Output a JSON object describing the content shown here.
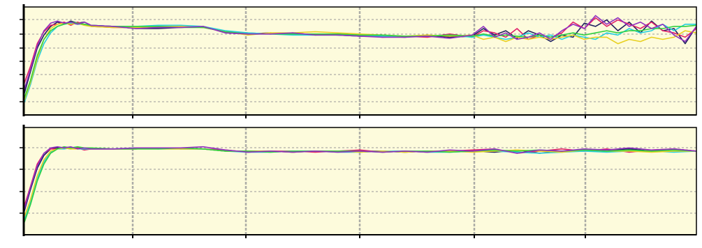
{
  "colors": {
    "background": "#fdfbdc",
    "grid": "#9a9a9a",
    "axis": "#000000",
    "series": [
      "#1f1f60",
      "#e0206a",
      "#22d0e0",
      "#e8d020",
      "#30d040",
      "#9030c0"
    ]
  },
  "chart_data": [
    {
      "type": "line",
      "title": "",
      "xlabel": "",
      "ylabel": "",
      "xlim": [
        0,
        6000
      ],
      "ylim": [
        0,
        1
      ],
      "grid": true,
      "legend": "none",
      "series": [
        {
          "x": [
            0,
            60,
            120,
            180,
            240,
            300,
            360,
            420,
            480,
            540,
            600,
            800,
            1000,
            1200,
            1400,
            1600,
            1800,
            2000,
            2200,
            2400,
            2600,
            2800,
            3000,
            3200,
            3400,
            3600,
            3800,
            4000,
            4100,
            4200,
            4300,
            4400,
            4500,
            4600,
            4700,
            4800,
            4900,
            5000,
            5100,
            5200,
            5300,
            5400,
            5500,
            5600,
            5700,
            5800,
            5900,
            6000
          ],
          "y": [
            0.18,
            0.4,
            0.62,
            0.74,
            0.82,
            0.86,
            0.84,
            0.87,
            0.85,
            0.86,
            0.83,
            0.82,
            0.8,
            0.8,
            0.81,
            0.82,
            0.76,
            0.75,
            0.76,
            0.75,
            0.75,
            0.74,
            0.73,
            0.73,
            0.72,
            0.74,
            0.72,
            0.73,
            0.8,
            0.74,
            0.78,
            0.71,
            0.78,
            0.74,
            0.68,
            0.74,
            0.72,
            0.85,
            0.82,
            0.88,
            0.78,
            0.86,
            0.76,
            0.87,
            0.78,
            0.8,
            0.66,
            0.82
          ]
        },
        {
          "x": [
            0,
            60,
            120,
            180,
            240,
            300,
            360,
            420,
            480,
            540,
            600,
            800,
            1000,
            1200,
            1400,
            1600,
            1800,
            2000,
            2200,
            2400,
            2600,
            2800,
            3000,
            3200,
            3400,
            3600,
            3800,
            4000,
            4100,
            4200,
            4300,
            4400,
            4500,
            4600,
            4700,
            4800,
            4900,
            5000,
            5100,
            5200,
            5300,
            5400,
            5500,
            5600,
            5700,
            5800,
            5900,
            6000
          ],
          "y": [
            0.28,
            0.45,
            0.66,
            0.77,
            0.83,
            0.84,
            0.86,
            0.83,
            0.86,
            0.84,
            0.82,
            0.81,
            0.81,
            0.81,
            0.82,
            0.81,
            0.77,
            0.76,
            0.75,
            0.76,
            0.74,
            0.75,
            0.74,
            0.72,
            0.73,
            0.72,
            0.75,
            0.72,
            0.78,
            0.76,
            0.72,
            0.8,
            0.7,
            0.74,
            0.72,
            0.76,
            0.86,
            0.8,
            0.9,
            0.82,
            0.88,
            0.84,
            0.8,
            0.86,
            0.78,
            0.76,
            0.72,
            0.8
          ]
        },
        {
          "x": [
            0,
            60,
            120,
            180,
            240,
            300,
            360,
            420,
            480,
            540,
            600,
            800,
            1000,
            1200,
            1400,
            1600,
            1800,
            2000,
            2200,
            2400,
            2600,
            2800,
            3000,
            3200,
            3400,
            3600,
            3800,
            4000,
            4100,
            4200,
            4300,
            4400,
            4500,
            4600,
            4700,
            4800,
            4900,
            5000,
            5100,
            5200,
            5300,
            5400,
            5500,
            5600,
            5700,
            5800,
            5900,
            6000
          ],
          "y": [
            0.1,
            0.28,
            0.5,
            0.66,
            0.76,
            0.82,
            0.84,
            0.85,
            0.84,
            0.84,
            0.83,
            0.82,
            0.82,
            0.83,
            0.83,
            0.82,
            0.78,
            0.76,
            0.75,
            0.74,
            0.74,
            0.74,
            0.73,
            0.73,
            0.73,
            0.73,
            0.74,
            0.72,
            0.74,
            0.72,
            0.7,
            0.72,
            0.76,
            0.72,
            0.74,
            0.7,
            0.74,
            0.72,
            0.7,
            0.76,
            0.74,
            0.8,
            0.76,
            0.78,
            0.84,
            0.78,
            0.84,
            0.84
          ]
        },
        {
          "x": [
            0,
            60,
            120,
            180,
            240,
            300,
            360,
            420,
            480,
            540,
            600,
            800,
            1000,
            1200,
            1400,
            1600,
            1800,
            2000,
            2200,
            2400,
            2600,
            2800,
            3000,
            3200,
            3400,
            3600,
            3800,
            4000,
            4100,
            4200,
            4300,
            4400,
            4500,
            4600,
            4700,
            4800,
            4900,
            5000,
            5100,
            5200,
            5300,
            5400,
            5500,
            5600,
            5700,
            5800,
            5900,
            6000
          ],
          "y": [
            0.12,
            0.3,
            0.52,
            0.7,
            0.8,
            0.84,
            0.85,
            0.84,
            0.85,
            0.83,
            0.82,
            0.81,
            0.81,
            0.82,
            0.82,
            0.81,
            0.77,
            0.74,
            0.76,
            0.76,
            0.77,
            0.76,
            0.75,
            0.74,
            0.73,
            0.74,
            0.73,
            0.74,
            0.7,
            0.72,
            0.68,
            0.72,
            0.7,
            0.72,
            0.7,
            0.72,
            0.74,
            0.7,
            0.72,
            0.72,
            0.66,
            0.7,
            0.68,
            0.72,
            0.7,
            0.72,
            0.78,
            0.76
          ]
        },
        {
          "x": [
            0,
            60,
            120,
            180,
            240,
            300,
            360,
            420,
            480,
            540,
            600,
            800,
            1000,
            1200,
            1400,
            1600,
            1800,
            2000,
            2200,
            2400,
            2600,
            2800,
            3000,
            3200,
            3400,
            3600,
            3800,
            4000,
            4100,
            4200,
            4300,
            4400,
            4500,
            4600,
            4700,
            4800,
            4900,
            5000,
            5100,
            5200,
            5300,
            5400,
            5500,
            5600,
            5700,
            5800,
            5900,
            6000
          ],
          "y": [
            0.14,
            0.32,
            0.55,
            0.7,
            0.78,
            0.82,
            0.84,
            0.86,
            0.85,
            0.84,
            0.83,
            0.82,
            0.82,
            0.82,
            0.81,
            0.81,
            0.77,
            0.75,
            0.75,
            0.75,
            0.75,
            0.75,
            0.74,
            0.74,
            0.73,
            0.73,
            0.74,
            0.73,
            0.75,
            0.73,
            0.74,
            0.73,
            0.72,
            0.74,
            0.72,
            0.74,
            0.76,
            0.74,
            0.76,
            0.78,
            0.76,
            0.78,
            0.78,
            0.8,
            0.8,
            0.82,
            0.82,
            0.83
          ]
        },
        {
          "x": [
            0,
            60,
            120,
            180,
            240,
            300,
            360,
            420,
            480,
            540,
            600,
            800,
            1000,
            1200,
            1400,
            1600,
            1800,
            2000,
            2200,
            2400,
            2600,
            2800,
            3000,
            3200,
            3400,
            3600,
            3800,
            4000,
            4100,
            4200,
            4300,
            4400,
            4500,
            4600,
            4700,
            4800,
            4900,
            5000,
            5100,
            5200,
            5300,
            5400,
            5500,
            5600,
            5700,
            5800,
            5900,
            6000
          ],
          "y": [
            0.22,
            0.42,
            0.64,
            0.78,
            0.85,
            0.87,
            0.85,
            0.86,
            0.84,
            0.86,
            0.83,
            0.82,
            0.8,
            0.81,
            0.81,
            0.82,
            0.76,
            0.75,
            0.75,
            0.76,
            0.74,
            0.74,
            0.73,
            0.72,
            0.72,
            0.73,
            0.71,
            0.74,
            0.82,
            0.72,
            0.76,
            0.7,
            0.72,
            0.76,
            0.7,
            0.78,
            0.84,
            0.8,
            0.92,
            0.84,
            0.9,
            0.82,
            0.86,
            0.8,
            0.84,
            0.74,
            0.68,
            0.82
          ]
        }
      ]
    },
    {
      "type": "line",
      "title": "",
      "xlabel": "",
      "ylabel": "",
      "xlim": [
        0,
        6000
      ],
      "ylim": [
        0,
        1
      ],
      "grid": true,
      "legend": "none",
      "series": [
        {
          "x": [
            0,
            60,
            120,
            180,
            240,
            300,
            360,
            420,
            480,
            540,
            600,
            800,
            1000,
            1200,
            1400,
            1600,
            1800,
            2000,
            2200,
            2400,
            2600,
            2800,
            3000,
            3200,
            3400,
            3600,
            3800,
            4000,
            4200,
            4400,
            4600,
            4800,
            5000,
            5200,
            5400,
            5600,
            5800,
            6000
          ],
          "y": [
            0.2,
            0.42,
            0.62,
            0.74,
            0.8,
            0.81,
            0.81,
            0.8,
            0.81,
            0.8,
            0.8,
            0.8,
            0.8,
            0.81,
            0.8,
            0.8,
            0.78,
            0.78,
            0.78,
            0.77,
            0.78,
            0.78,
            0.78,
            0.78,
            0.77,
            0.78,
            0.78,
            0.78,
            0.77,
            0.79,
            0.76,
            0.78,
            0.78,
            0.79,
            0.8,
            0.78,
            0.8,
            0.78
          ]
        },
        {
          "x": [
            0,
            60,
            120,
            180,
            240,
            300,
            360,
            420,
            480,
            540,
            600,
            800,
            1000,
            1200,
            1400,
            1600,
            1800,
            2000,
            2200,
            2400,
            2600,
            2800,
            3000,
            3200,
            3400,
            3600,
            3800,
            4000,
            4200,
            4400,
            4600,
            4800,
            5000,
            5200,
            5400,
            5600,
            5800,
            6000
          ],
          "y": [
            0.25,
            0.45,
            0.66,
            0.76,
            0.8,
            0.8,
            0.82,
            0.8,
            0.81,
            0.79,
            0.8,
            0.8,
            0.8,
            0.81,
            0.81,
            0.8,
            0.79,
            0.77,
            0.78,
            0.78,
            0.77,
            0.78,
            0.79,
            0.77,
            0.78,
            0.77,
            0.78,
            0.79,
            0.8,
            0.76,
            0.78,
            0.8,
            0.78,
            0.8,
            0.77,
            0.79,
            0.8,
            0.78
          ]
        },
        {
          "x": [
            0,
            60,
            120,
            180,
            240,
            300,
            360,
            420,
            480,
            540,
            600,
            800,
            1000,
            1200,
            1400,
            1600,
            1800,
            2000,
            2200,
            2400,
            2600,
            2800,
            3000,
            3200,
            3400,
            3600,
            3800,
            4000,
            4200,
            4400,
            4600,
            4800,
            5000,
            5200,
            5400,
            5600,
            5800,
            6000
          ],
          "y": [
            0.12,
            0.3,
            0.52,
            0.68,
            0.77,
            0.8,
            0.8,
            0.81,
            0.8,
            0.8,
            0.8,
            0.8,
            0.81,
            0.8,
            0.8,
            0.8,
            0.78,
            0.77,
            0.77,
            0.78,
            0.78,
            0.77,
            0.77,
            0.78,
            0.78,
            0.77,
            0.77,
            0.78,
            0.78,
            0.77,
            0.76,
            0.77,
            0.78,
            0.77,
            0.78,
            0.78,
            0.77,
            0.78
          ]
        },
        {
          "x": [
            0,
            60,
            120,
            180,
            240,
            300,
            360,
            420,
            480,
            540,
            600,
            800,
            1000,
            1200,
            1400,
            1600,
            1800,
            2000,
            2200,
            2400,
            2600,
            2800,
            3000,
            3200,
            3400,
            3600,
            3800,
            4000,
            4200,
            4400,
            4600,
            4800,
            5000,
            5200,
            5400,
            5600,
            5800,
            6000
          ],
          "y": [
            0.15,
            0.33,
            0.55,
            0.7,
            0.78,
            0.8,
            0.81,
            0.8,
            0.8,
            0.81,
            0.8,
            0.8,
            0.8,
            0.8,
            0.8,
            0.8,
            0.78,
            0.78,
            0.78,
            0.77,
            0.78,
            0.78,
            0.77,
            0.78,
            0.77,
            0.78,
            0.78,
            0.77,
            0.78,
            0.79,
            0.78,
            0.77,
            0.79,
            0.78,
            0.78,
            0.77,
            0.78,
            0.78
          ]
        },
        {
          "x": [
            0,
            60,
            120,
            180,
            240,
            300,
            360,
            420,
            480,
            540,
            600,
            800,
            1000,
            1200,
            1400,
            1600,
            1800,
            2000,
            2200,
            2400,
            2600,
            2800,
            3000,
            3200,
            3400,
            3600,
            3800,
            4000,
            4200,
            4400,
            4600,
            4800,
            5000,
            5200,
            5400,
            5600,
            5800,
            6000
          ],
          "y": [
            0.1,
            0.28,
            0.5,
            0.66,
            0.76,
            0.8,
            0.82,
            0.81,
            0.82,
            0.81,
            0.81,
            0.8,
            0.8,
            0.8,
            0.81,
            0.8,
            0.78,
            0.78,
            0.77,
            0.78,
            0.78,
            0.78,
            0.78,
            0.77,
            0.78,
            0.78,
            0.77,
            0.78,
            0.79,
            0.78,
            0.79,
            0.78,
            0.79,
            0.78,
            0.79,
            0.78,
            0.79,
            0.78
          ]
        },
        {
          "x": [
            0,
            60,
            120,
            180,
            240,
            300,
            360,
            420,
            480,
            540,
            600,
            800,
            1000,
            1200,
            1400,
            1600,
            1800,
            2000,
            2200,
            2400,
            2600,
            2800,
            3000,
            3200,
            3400,
            3600,
            3800,
            4000,
            4200,
            4400,
            4600,
            4800,
            5000,
            5200,
            5400,
            5600,
            5800,
            6000
          ],
          "y": [
            0.22,
            0.44,
            0.64,
            0.76,
            0.81,
            0.82,
            0.81,
            0.82,
            0.8,
            0.81,
            0.8,
            0.8,
            0.81,
            0.81,
            0.81,
            0.82,
            0.79,
            0.77,
            0.78,
            0.77,
            0.78,
            0.77,
            0.78,
            0.77,
            0.78,
            0.77,
            0.79,
            0.78,
            0.8,
            0.76,
            0.79,
            0.78,
            0.8,
            0.79,
            0.81,
            0.79,
            0.8,
            0.78
          ]
        }
      ]
    }
  ]
}
